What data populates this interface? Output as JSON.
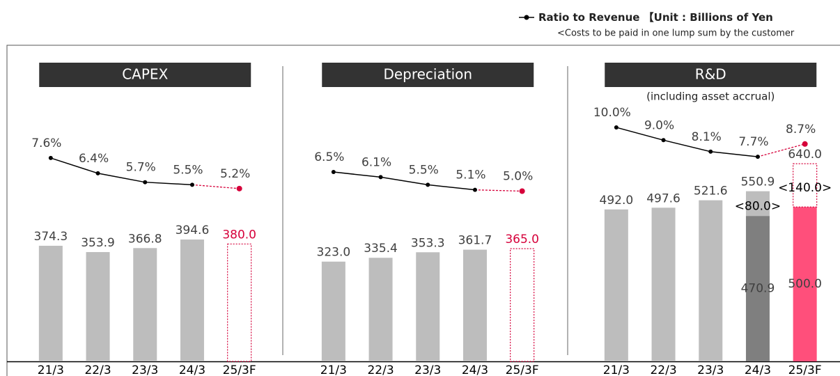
{
  "legend_label": "Ratio to Revenue",
  "unit": "【Unit : Billions of Yen",
  "note": "<Costs to be paid in one lump sum by the customer",
  "chart_data": [
    {
      "type": "bar",
      "title": "CAPEX",
      "categories": [
        "21/3",
        "22/3",
        "23/3",
        "24/3",
        "25/3F"
      ],
      "values": [
        374.3,
        353.9,
        366.8,
        394.6,
        380.0
      ],
      "value_labels": [
        "374.3",
        "353.9",
        "366.8",
        "394.6",
        "380.0"
      ],
      "color": "#bdbdbd",
      "forecast_color": "#d6003a",
      "line_color": "#000000",
      "forecast": [
        false,
        false,
        false,
        false,
        true
      ],
      "ratio": {
        "values": [
          7.6,
          6.4,
          5.7,
          5.5,
          5.2
        ],
        "value_labels": [
          "7.6%",
          "6.4%",
          "5.7%",
          "5.5%",
          "5.2%"
        ],
        "axis": "y2"
      },
      "ylim": [
        0,
        700
      ],
      "y2lim": [
        0,
        20
      ]
    },
    {
      "type": "bar",
      "title": "Depreciation",
      "categories": [
        "21/3",
        "22/3",
        "23/3",
        "24/3",
        "25/3F"
      ],
      "values": [
        323.0,
        335.4,
        353.3,
        361.7,
        365.0
      ],
      "value_labels": [
        "323.0",
        "335.4",
        "353.3",
        "361.7",
        "365.0"
      ],
      "color": "#bdbdbd",
      "forecast_color": "#d6003a",
      "line_color": "#000000",
      "forecast": [
        false,
        false,
        false,
        false,
        true
      ],
      "ratio": {
        "values": [
          6.5,
          6.1,
          5.5,
          5.1,
          5.0
        ],
        "value_labels": [
          "6.5%",
          "6.1%",
          "5.5%",
          "5.1%",
          "5.0%"
        ],
        "axis": "y2"
      },
      "ylim": [
        0,
        700
      ],
      "y2lim": [
        0,
        20
      ]
    },
    {
      "type": "stacked_bar",
      "title": "R&D",
      "subtitle": "(including asset accrual)",
      "categories": [
        "21/3",
        "22/3",
        "23/3",
        "24/3",
        "25/3F"
      ],
      "series": [
        {
          "colors": [
            "#bdbdbd",
            "#bdbdbd",
            "#bdbdbd",
            "#7f7f7f",
            "#ff4f7b"
          ],
          "values": [
            492.0,
            497.6,
            521.6,
            470.9,
            500.0
          ],
          "value_labels": [
            "492.0",
            "497.6",
            "521.6",
            "470.9",
            "500.0"
          ]
        },
        {
          "color": "#bdbdbd",
          "values": [
            null,
            null,
            null,
            80.0,
            140.0
          ],
          "value_labels": [
            null,
            null,
            null,
            "<80.0>",
            "<140.0>"
          ]
        }
      ],
      "total_labels": [
        null,
        null,
        null,
        "550.9",
        "640.0"
      ],
      "forecast_color": "#d6003a",
      "line_color": "#000000",
      "forecast": [
        false,
        false,
        false,
        false,
        true
      ],
      "ratio": {
        "values": [
          10.0,
          9.0,
          8.1,
          7.7,
          8.7
        ],
        "value_labels": [
          "10.0%",
          "9.0%",
          "8.1%",
          "7.7%",
          "8.7%"
        ],
        "axis": "y2"
      },
      "ylim": [
        0,
        700
      ],
      "y2lim": [
        0,
        20
      ]
    }
  ]
}
